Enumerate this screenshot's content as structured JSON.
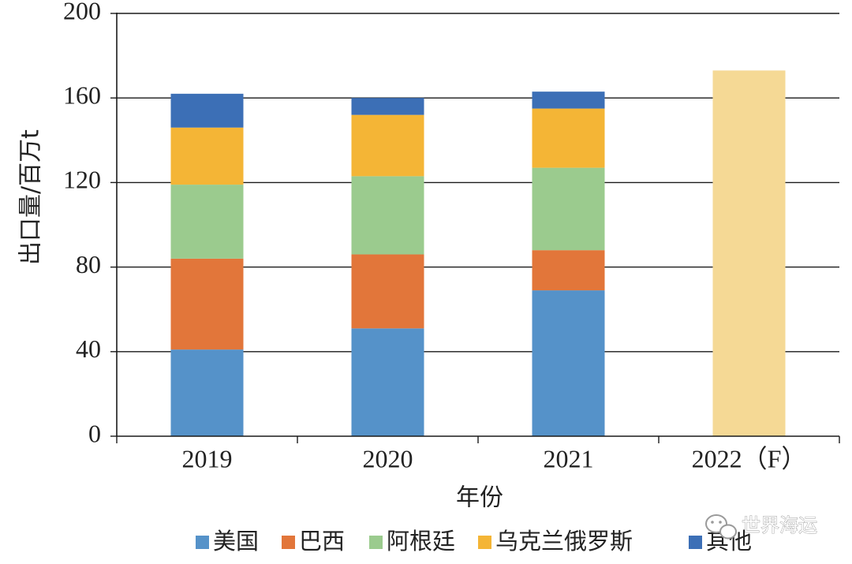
{
  "chart_data": {
    "type": "bar",
    "stacked": true,
    "categories": [
      "2019",
      "2020",
      "2021",
      "2022（F）"
    ],
    "series": [
      {
        "name": "美国",
        "color": "#5592c9",
        "values": [
          41,
          51,
          69,
          null
        ]
      },
      {
        "name": "巴西",
        "color": "#e2763a",
        "values": [
          43,
          35,
          19,
          null
        ]
      },
      {
        "name": "阿根廷",
        "color": "#9bcb8e",
        "values": [
          35,
          37,
          39,
          null
        ]
      },
      {
        "name": "乌克兰俄罗斯",
        "color": "#f4b536",
        "values": [
          27,
          29,
          28,
          null
        ]
      },
      {
        "name": "其他",
        "color": "#3c6fb6",
        "values": [
          16,
          8,
          8,
          null
        ]
      }
    ],
    "forecast": {
      "category": "2022（F）",
      "value": 173,
      "color": "#f5d995"
    },
    "xlabel": "年份",
    "ylabel": "出口量/百万t",
    "ylim": [
      0,
      200
    ],
    "yticks": [
      0,
      40,
      80,
      120,
      160,
      200
    ],
    "grid": true,
    "legend_position": "bottom"
  },
  "watermark": {
    "text": "世界海运",
    "icon": "wechat-icon"
  }
}
